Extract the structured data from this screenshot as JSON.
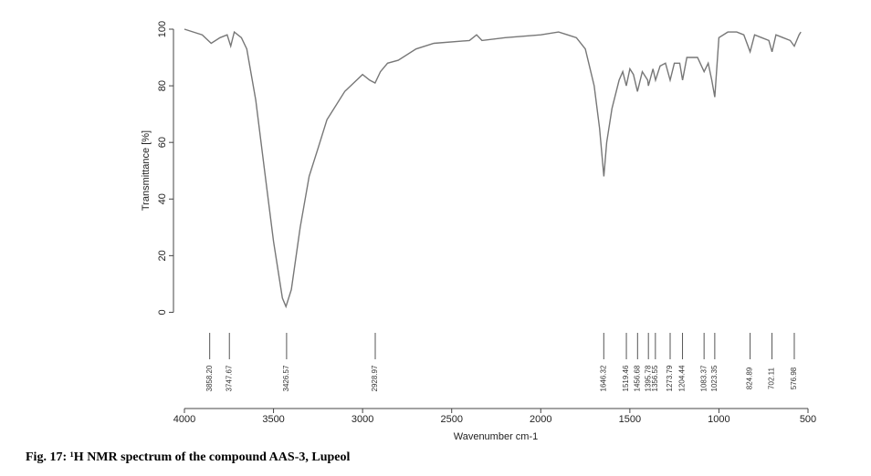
{
  "chart_data": {
    "type": "line",
    "caption": "Fig. 17: ¹H NMR spectrum of the compound AAS-3, Lupeol",
    "x_label": "Wavenumber cm-1",
    "y_label": "Transmittance [%]",
    "xlim": [
      4000,
      500
    ],
    "xticks": [
      4000,
      3500,
      3000,
      2500,
      2000,
      1500,
      1000,
      500
    ],
    "ylim": [
      -34,
      100
    ],
    "yticks": [
      0,
      20,
      40,
      60,
      80,
      100
    ],
    "peaks": [
      {
        "value": 3858.2,
        "label": "3858.20"
      },
      3747.67,
      3426.57,
      2928.97,
      1646.32,
      1519.46,
      1456.68,
      1395.78,
      1356.55,
      1273.79,
      1204.44,
      1083.37,
      1023.35,
      824.89,
      702.11,
      576.98
    ],
    "series": [
      {
        "color": "#777777",
        "x": [
          4000,
          3900,
          3850,
          3800,
          3760,
          3740,
          3720,
          3680,
          3650,
          3600,
          3550,
          3500,
          3450,
          3430,
          3400,
          3350,
          3300,
          3250,
          3200,
          3100,
          3000,
          2960,
          2930,
          2900,
          2860,
          2800,
          2700,
          2600,
          2400,
          2360,
          2330,
          2200,
          2000,
          1900,
          1850,
          1800,
          1750,
          1700,
          1670,
          1646,
          1630,
          1600,
          1560,
          1540,
          1520,
          1500,
          1480,
          1457,
          1430,
          1400,
          1396,
          1370,
          1356,
          1330,
          1300,
          1274,
          1250,
          1220,
          1204,
          1180,
          1120,
          1083,
          1060,
          1040,
          1023,
          1000,
          950,
          900,
          860,
          825,
          800,
          760,
          720,
          702,
          680,
          640,
          600,
          577,
          550,
          540
        ],
        "values": [
          100,
          98,
          95,
          97,
          98,
          94,
          99,
          97,
          93,
          75,
          50,
          25,
          5,
          2,
          8,
          30,
          48,
          58,
          68,
          78,
          84,
          82,
          81,
          85,
          88,
          89,
          93,
          95,
          96,
          98,
          96,
          97,
          98,
          99,
          98,
          97,
          93,
          80,
          65,
          48,
          60,
          72,
          82,
          85,
          80,
          86,
          84,
          78,
          85,
          82,
          80,
          86,
          82,
          87,
          88,
          82,
          88,
          88,
          82,
          90,
          90,
          85,
          88,
          82,
          76,
          97,
          99,
          99,
          98,
          92,
          98,
          97,
          96,
          92,
          98,
          97,
          96,
          94,
          98,
          99
        ]
      }
    ]
  }
}
